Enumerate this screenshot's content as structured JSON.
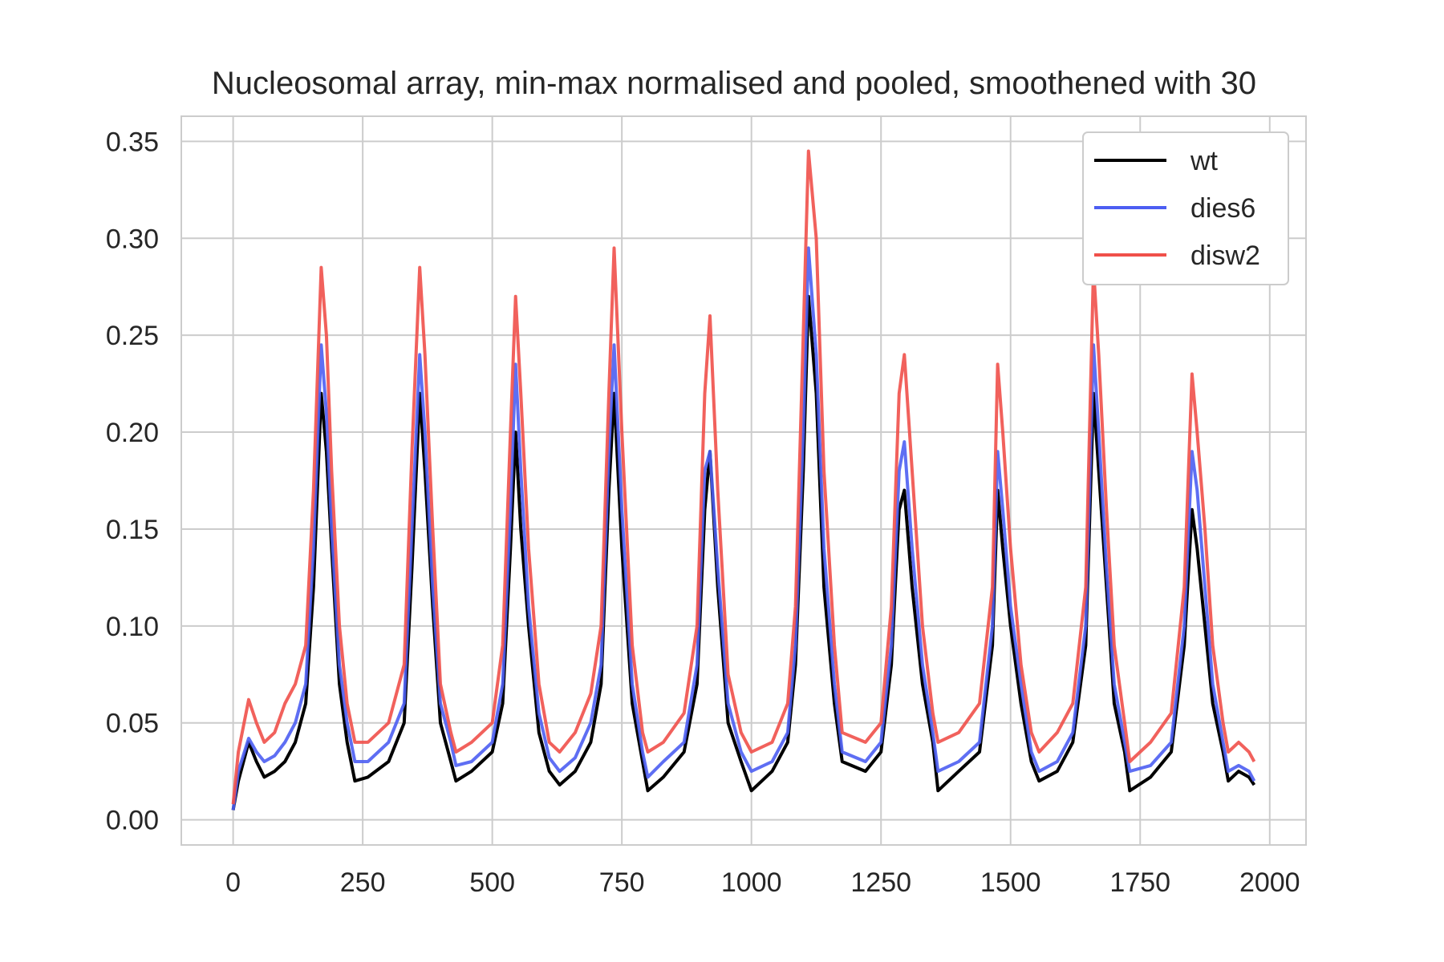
{
  "chart_data": {
    "type": "line",
    "title": "Nucleosomal array, min-max normalised and pooled, smoothened with 30",
    "xlabel": "",
    "ylabel": "",
    "xlim": [
      -100,
      2070
    ],
    "ylim": [
      -0.013,
      0.363
    ],
    "xticks": [
      0,
      250,
      500,
      750,
      1000,
      1250,
      1500,
      1750,
      2000
    ],
    "xtick_labels": [
      "0",
      "250",
      "500",
      "750",
      "1000",
      "1250",
      "1500",
      "1750",
      "2000"
    ],
    "yticks": [
      0.0,
      0.05,
      0.1,
      0.15,
      0.2,
      0.25,
      0.3,
      0.35
    ],
    "ytick_labels": [
      "0.00",
      "0.05",
      "0.10",
      "0.15",
      "0.20",
      "0.25",
      "0.30",
      "0.35"
    ],
    "grid": true,
    "legend_position": "top-right",
    "series": [
      {
        "name": "wt",
        "color": "#000000",
        "x": [
          0,
          10,
          30,
          45,
          60,
          80,
          100,
          120,
          140,
          155,
          170,
          180,
          190,
          205,
          220,
          235,
          260,
          300,
          330,
          345,
          360,
          370,
          385,
          400,
          420,
          430,
          460,
          500,
          520,
          535,
          545,
          555,
          570,
          590,
          610,
          630,
          660,
          690,
          710,
          725,
          735,
          750,
          770,
          790,
          800,
          830,
          870,
          895,
          910,
          920,
          935,
          955,
          980,
          1000,
          1040,
          1070,
          1085,
          1100,
          1110,
          1125,
          1140,
          1160,
          1175,
          1220,
          1250,
          1270,
          1285,
          1295,
          1310,
          1330,
          1350,
          1360,
          1400,
          1440,
          1465,
          1475,
          1485,
          1500,
          1520,
          1540,
          1555,
          1590,
          1620,
          1645,
          1660,
          1670,
          1685,
          1700,
          1720,
          1730,
          1770,
          1810,
          1835,
          1850,
          1860,
          1875,
          1890,
          1910,
          1920,
          1940,
          1960,
          1970
        ],
        "y": [
          0.005,
          0.02,
          0.04,
          0.03,
          0.022,
          0.025,
          0.03,
          0.04,
          0.06,
          0.12,
          0.22,
          0.19,
          0.14,
          0.07,
          0.04,
          0.02,
          0.022,
          0.03,
          0.05,
          0.13,
          0.22,
          0.18,
          0.11,
          0.05,
          0.03,
          0.02,
          0.025,
          0.035,
          0.06,
          0.14,
          0.2,
          0.15,
          0.1,
          0.045,
          0.025,
          0.018,
          0.025,
          0.04,
          0.07,
          0.17,
          0.22,
          0.14,
          0.06,
          0.03,
          0.015,
          0.022,
          0.035,
          0.07,
          0.16,
          0.19,
          0.12,
          0.05,
          0.03,
          0.015,
          0.025,
          0.04,
          0.08,
          0.18,
          0.27,
          0.22,
          0.12,
          0.06,
          0.03,
          0.025,
          0.035,
          0.08,
          0.16,
          0.17,
          0.12,
          0.07,
          0.04,
          0.015,
          0.025,
          0.035,
          0.09,
          0.17,
          0.14,
          0.1,
          0.06,
          0.03,
          0.02,
          0.025,
          0.04,
          0.09,
          0.22,
          0.18,
          0.12,
          0.06,
          0.035,
          0.015,
          0.022,
          0.035,
          0.09,
          0.16,
          0.14,
          0.1,
          0.06,
          0.035,
          0.02,
          0.025,
          0.022,
          0.018
        ]
      },
      {
        "name": "dies6",
        "color": "#4c5ef2",
        "x": [
          0,
          10,
          30,
          45,
          60,
          80,
          100,
          120,
          140,
          155,
          170,
          180,
          190,
          205,
          220,
          235,
          260,
          300,
          330,
          345,
          360,
          370,
          385,
          400,
          420,
          430,
          460,
          500,
          520,
          535,
          545,
          555,
          570,
          590,
          610,
          630,
          660,
          690,
          710,
          725,
          735,
          750,
          770,
          790,
          800,
          830,
          870,
          895,
          910,
          920,
          935,
          955,
          980,
          1000,
          1040,
          1070,
          1085,
          1100,
          1110,
          1125,
          1140,
          1160,
          1175,
          1220,
          1250,
          1270,
          1285,
          1295,
          1310,
          1330,
          1350,
          1360,
          1400,
          1440,
          1465,
          1475,
          1485,
          1500,
          1520,
          1540,
          1555,
          1590,
          1620,
          1645,
          1660,
          1670,
          1685,
          1700,
          1720,
          1730,
          1770,
          1810,
          1835,
          1850,
          1860,
          1875,
          1890,
          1910,
          1920,
          1940,
          1960,
          1970
        ],
        "y": [
          0.005,
          0.025,
          0.042,
          0.035,
          0.03,
          0.033,
          0.04,
          0.05,
          0.07,
          0.14,
          0.245,
          0.21,
          0.15,
          0.08,
          0.05,
          0.03,
          0.03,
          0.04,
          0.06,
          0.15,
          0.24,
          0.2,
          0.12,
          0.06,
          0.04,
          0.028,
          0.03,
          0.04,
          0.07,
          0.16,
          0.235,
          0.18,
          0.11,
          0.055,
          0.032,
          0.025,
          0.032,
          0.05,
          0.08,
          0.19,
          0.245,
          0.16,
          0.07,
          0.035,
          0.022,
          0.03,
          0.04,
          0.08,
          0.18,
          0.19,
          0.13,
          0.06,
          0.035,
          0.025,
          0.03,
          0.045,
          0.09,
          0.2,
          0.295,
          0.24,
          0.14,
          0.07,
          0.035,
          0.03,
          0.04,
          0.09,
          0.18,
          0.195,
          0.14,
          0.08,
          0.045,
          0.025,
          0.03,
          0.04,
          0.1,
          0.19,
          0.16,
          0.11,
          0.07,
          0.035,
          0.025,
          0.03,
          0.045,
          0.1,
          0.245,
          0.2,
          0.13,
          0.07,
          0.04,
          0.025,
          0.028,
          0.04,
          0.1,
          0.19,
          0.17,
          0.12,
          0.07,
          0.04,
          0.025,
          0.028,
          0.025,
          0.02
        ]
      },
      {
        "name": "disw2",
        "color": "#f0504a",
        "x": [
          0,
          10,
          30,
          45,
          60,
          80,
          100,
          120,
          140,
          155,
          170,
          180,
          190,
          205,
          220,
          235,
          260,
          300,
          330,
          345,
          360,
          370,
          385,
          400,
          420,
          430,
          460,
          500,
          520,
          535,
          545,
          555,
          570,
          590,
          610,
          630,
          660,
          690,
          710,
          725,
          735,
          750,
          770,
          790,
          800,
          830,
          870,
          895,
          910,
          920,
          935,
          955,
          980,
          1000,
          1040,
          1070,
          1085,
          1100,
          1110,
          1125,
          1140,
          1160,
          1175,
          1220,
          1250,
          1270,
          1285,
          1295,
          1310,
          1330,
          1350,
          1360,
          1400,
          1440,
          1465,
          1475,
          1485,
          1500,
          1520,
          1540,
          1555,
          1590,
          1620,
          1645,
          1660,
          1670,
          1685,
          1700,
          1720,
          1730,
          1770,
          1810,
          1835,
          1850,
          1860,
          1875,
          1890,
          1910,
          1920,
          1940,
          1960,
          1970
        ],
        "y": [
          0.008,
          0.035,
          0.062,
          0.05,
          0.04,
          0.045,
          0.06,
          0.07,
          0.09,
          0.17,
          0.285,
          0.25,
          0.18,
          0.1,
          0.06,
          0.04,
          0.04,
          0.05,
          0.08,
          0.19,
          0.285,
          0.24,
          0.15,
          0.07,
          0.045,
          0.035,
          0.04,
          0.05,
          0.09,
          0.2,
          0.27,
          0.22,
          0.14,
          0.07,
          0.04,
          0.035,
          0.045,
          0.065,
          0.1,
          0.22,
          0.295,
          0.2,
          0.09,
          0.045,
          0.035,
          0.04,
          0.055,
          0.1,
          0.22,
          0.26,
          0.17,
          0.075,
          0.045,
          0.035,
          0.04,
          0.06,
          0.11,
          0.25,
          0.345,
          0.3,
          0.18,
          0.09,
          0.045,
          0.04,
          0.05,
          0.11,
          0.22,
          0.24,
          0.18,
          0.1,
          0.055,
          0.04,
          0.045,
          0.06,
          0.12,
          0.235,
          0.2,
          0.14,
          0.08,
          0.045,
          0.035,
          0.045,
          0.06,
          0.12,
          0.285,
          0.24,
          0.16,
          0.09,
          0.05,
          0.03,
          0.04,
          0.055,
          0.12,
          0.23,
          0.2,
          0.15,
          0.09,
          0.05,
          0.035,
          0.04,
          0.035,
          0.03
        ]
      }
    ]
  }
}
